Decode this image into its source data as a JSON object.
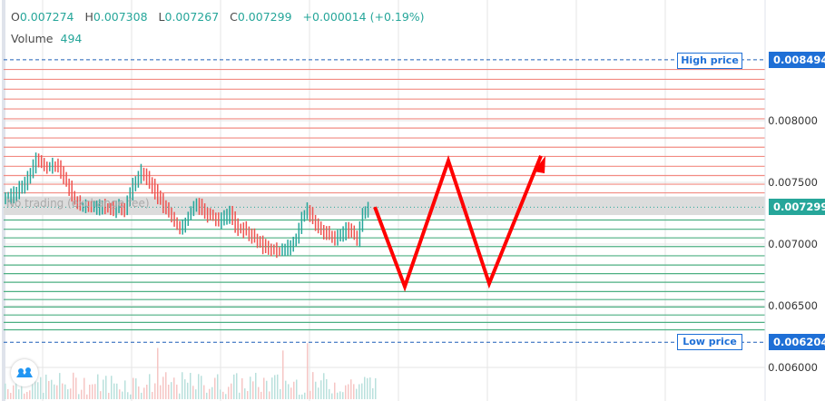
{
  "legend": {
    "o_label": "O",
    "o": "0.007274",
    "h_label": "H",
    "h": "0.007308",
    "l_label": "L",
    "l": "0.007267",
    "c_label": "C",
    "c": "0.007299",
    "change": "+0.000014 (+0.19%)",
    "volume_label": "Volume",
    "volume": "494"
  },
  "annotations": {
    "high_label": "High price",
    "low_label": "Low price",
    "zone_label": "No trading (exchange fee)"
  },
  "colors": {
    "up": "#26a69a",
    "down": "#ef5350",
    "resistance": "#f28b82",
    "support": "#4caf82",
    "marker": "#1e6fd6",
    "arrow": "#ff0000",
    "band": "#dcdcdc"
  },
  "logo": "tradingview-logo-icon",
  "chart_data": {
    "type": "candlestick",
    "yaxis": {
      "ticks": [
        "0.008000",
        "0.007500",
        "0.007000",
        "0.006500",
        "0.006000"
      ],
      "tick_values": [
        0.008,
        0.0075,
        0.007,
        0.0065,
        0.006
      ],
      "ylim": [
        0.00576,
        0.00898
      ]
    },
    "price_tags": {
      "high": {
        "value": 0.008494,
        "label": "0.008494"
      },
      "last": {
        "value": 0.007299,
        "label": "0.007299"
      },
      "low": {
        "value": 0.006204,
        "label": "0.006204"
      }
    },
    "no_trade_band": [
      0.007235,
      0.007385
    ],
    "resistance_levels": [
      0.008415,
      0.008335,
      0.008255,
      0.008175,
      0.008095,
      0.008015,
      0.00794,
      0.00786,
      0.007785,
      0.00771,
      0.00763,
      0.007555,
      0.007485,
      0.007415
    ],
    "support_levels": [
      0.007195,
      0.00712,
      0.00705,
      0.00698,
      0.006905,
      0.00683,
      0.00676,
      0.00669,
      0.006615,
      0.00655,
      0.00649,
      0.006425,
      0.006365,
      0.006305
    ],
    "closes": [
      0.00737,
      0.00741,
      0.00745,
      0.0075,
      0.00757,
      0.00768,
      0.00765,
      0.00762,
      0.00763,
      0.00762,
      0.00755,
      0.00745,
      0.00735,
      0.0073,
      0.00731,
      0.00729,
      0.0073,
      0.00731,
      0.00729,
      0.00728,
      0.0073,
      0.00728,
      0.00742,
      0.00752,
      0.00758,
      0.00753,
      0.00747,
      0.00738,
      0.00732,
      0.00726,
      0.00718,
      0.00712,
      0.00718,
      0.00727,
      0.00732,
      0.00728,
      0.00724,
      0.00722,
      0.00718,
      0.00721,
      0.00725,
      0.00715,
      0.00712,
      0.00711,
      0.00706,
      0.00703,
      0.00698,
      0.00697,
      0.00695,
      0.00694,
      0.00696,
      0.00698,
      0.00705,
      0.00722,
      0.00727,
      0.0072,
      0.00715,
      0.00709,
      0.00707,
      0.00705,
      0.00706,
      0.00711,
      0.00709,
      0.00704,
      0.00724,
      0.0073
    ],
    "projection": [
      0.0073,
      0.006655,
      0.007675,
      0.00668,
      0.007715
    ],
    "volume_range": "low"
  }
}
